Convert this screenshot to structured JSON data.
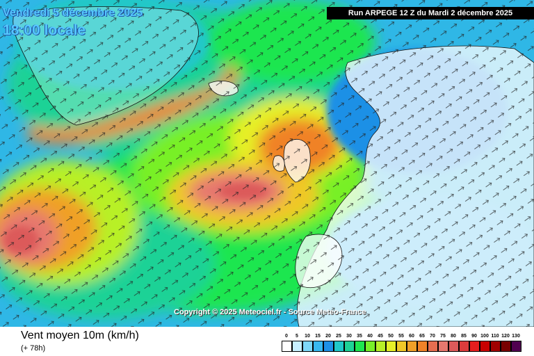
{
  "header": {
    "date_line": "Vendredi 5 décembre 2025",
    "time_line": "18:00 locale",
    "run_info": "Run ARPEGE 12 Z du Mardi 2 décembre 2025"
  },
  "copyright": "Copyright © 2025 Meteociel.fr - Source Meteo-France",
  "footer": {
    "variable": "Vent moyen 10m (km/h)",
    "lead_time": "(+ 78h)"
  },
  "legend": {
    "values": [
      "0",
      "5",
      "10",
      "15",
      "20",
      "25",
      "30",
      "35",
      "40",
      "45",
      "50",
      "55",
      "60",
      "65",
      "70",
      "75",
      "80",
      "85",
      "90",
      "100",
      "110",
      "120",
      "130"
    ],
    "colors": [
      "#ffffff",
      "#c8f0ff",
      "#7ed8f8",
      "#38b8f0",
      "#1e90e6",
      "#20c8c8",
      "#1ed296",
      "#1ee650",
      "#78f028",
      "#b8f028",
      "#e6f028",
      "#f0c828",
      "#f0a028",
      "#f08228",
      "#e66e50",
      "#e6786e",
      "#dc5a5a",
      "#dc3c3c",
      "#e61e1e",
      "#c80000",
      "#a00000",
      "#780000",
      "#500050"
    ]
  },
  "map": {
    "land_color": "#ffffff",
    "sea_colors": {
      "calm": "#2fb7e6",
      "light": "#1ed296",
      "moderate": "#78f028",
      "fresh": "#e6f028",
      "strong": "#f08228",
      "gale": "#dc5a5a"
    }
  }
}
